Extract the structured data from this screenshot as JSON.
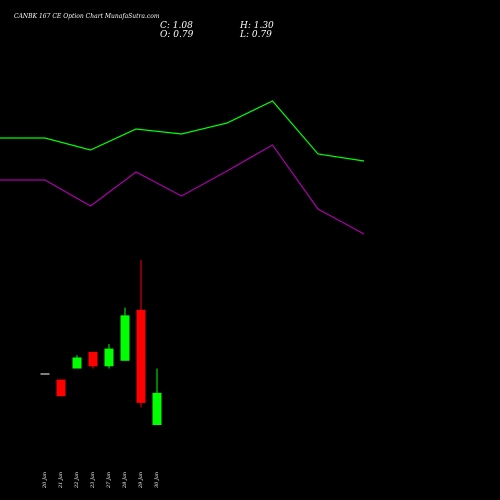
{
  "header": {
    "title": "CANBK 167 CE Option  Chart MunafaSutra.com",
    "close_label": "C: 1.08",
    "high_label": "H: 1.30",
    "open_label": "O: 0.79",
    "low_label": "L: 0.79"
  },
  "colors": {
    "background": "#000000",
    "up": "#00ff00",
    "down": "#ff0000",
    "neutral": "#ffffff",
    "upper_line": "#00ff00",
    "lower_line": "#aa00aa"
  },
  "chart_data": {
    "type": "candlestick",
    "title": "CANBK 167 CE Option  Chart MunafaSutra.com",
    "categories": [
      "20 Jan",
      "21 Jan",
      "22 Jan",
      "23 Jan",
      "27 Jan",
      "28 Jan",
      "29 Jan",
      "30 Jan"
    ],
    "candles": [
      {
        "date": "20 Jan",
        "open": 1.2,
        "high": 1.2,
        "low": 1.2,
        "close": 1.2
      },
      {
        "date": "21 Jan",
        "open": 1.2,
        "high": 1.2,
        "low": 1.05,
        "close": 1.05
      },
      {
        "date": "22 Jan",
        "open": 1.3,
        "high": 1.42,
        "low": 1.3,
        "close": 1.4
      },
      {
        "date": "23 Jan",
        "open": 1.45,
        "high": 1.45,
        "low": 1.3,
        "close": 1.32
      },
      {
        "date": "27 Jan",
        "open": 1.32,
        "high": 1.52,
        "low": 1.3,
        "close": 1.48
      },
      {
        "date": "28 Jan",
        "open": 1.37,
        "high": 1.85,
        "low": 1.37,
        "close": 1.78
      },
      {
        "date": "29 Jan",
        "open": 1.83,
        "high": 2.28,
        "low": 0.95,
        "close": 0.99
      },
      {
        "date": "30 Jan",
        "open": 0.79,
        "high": 1.3,
        "low": 0.79,
        "close": 1.08
      }
    ],
    "indicator_series": [
      {
        "x": [
          -1,
          0,
          1,
          2,
          3,
          4,
          5,
          6,
          7
        ],
        "values": [
          0.9,
          0.9,
          0.8,
          1.1,
          1.05,
          1.2,
          1.5,
          0.7,
          0.6
        ]
      },
      {
        "x": [
          -1,
          0,
          1,
          2,
          3,
          4,
          5,
          6,
          7
        ],
        "values": [
          0.75,
          0.75,
          0.55,
          0.95,
          0.7,
          1.0,
          1.32,
          0.55,
          0.35
        ]
      }
    ]
  }
}
